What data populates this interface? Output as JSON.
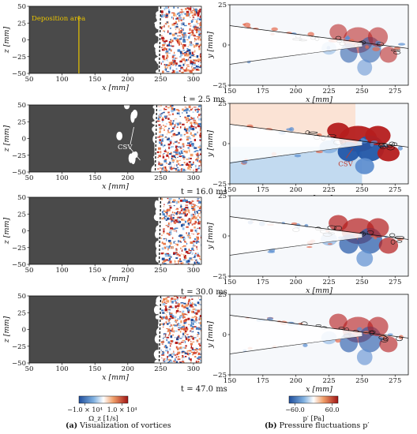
{
  "rows": [
    {
      "time_label": "t = 2.5 ms"
    },
    {
      "time_label": "t = 16.0 ms"
    },
    {
      "time_label": "t = 30.0 ms"
    },
    {
      "time_label": "t = 47.0 ms"
    }
  ],
  "left_panels": {
    "xlabel": "x [mm]",
    "ylabel": "z [mm]",
    "x_ticks": [
      "50",
      "100",
      "150",
      "200",
      "250",
      "300"
    ],
    "z_ticks": [
      "50",
      "25",
      "0",
      "−25",
      "−50"
    ],
    "annotation_deposition": "Deposition area",
    "annotation_csv": "CSV"
  },
  "right_panels": {
    "xlabel": "x [mm]",
    "ylabel": "y [mm]",
    "x_ticks": [
      "150",
      "175",
      "200",
      "225",
      "250",
      "275"
    ],
    "y_ticks": [
      "25",
      "0",
      "−25"
    ],
    "annotation_csv": "CSV"
  },
  "colorbar_left": {
    "label": "Ω_z [1/s]",
    "min_label": "−1.0 × 10⁴",
    "max_label": "1.0 × 10⁴"
  },
  "colorbar_right": {
    "label": "p′ [Pa]",
    "min_label": "−60.0",
    "max_label": "60.0"
  },
  "captions": {
    "a_tag": "(a)",
    "a_text": " Visualization of vortices",
    "b_tag": "(b)",
    "b_text": " Pressure fluctuations p′"
  },
  "colors": {
    "dark_fill": "#4a4a4a",
    "blue": "#2257a8",
    "red": "#b51d1d",
    "annotation_yellow": "#e8c200",
    "csv_red": "#c0392b"
  }
}
